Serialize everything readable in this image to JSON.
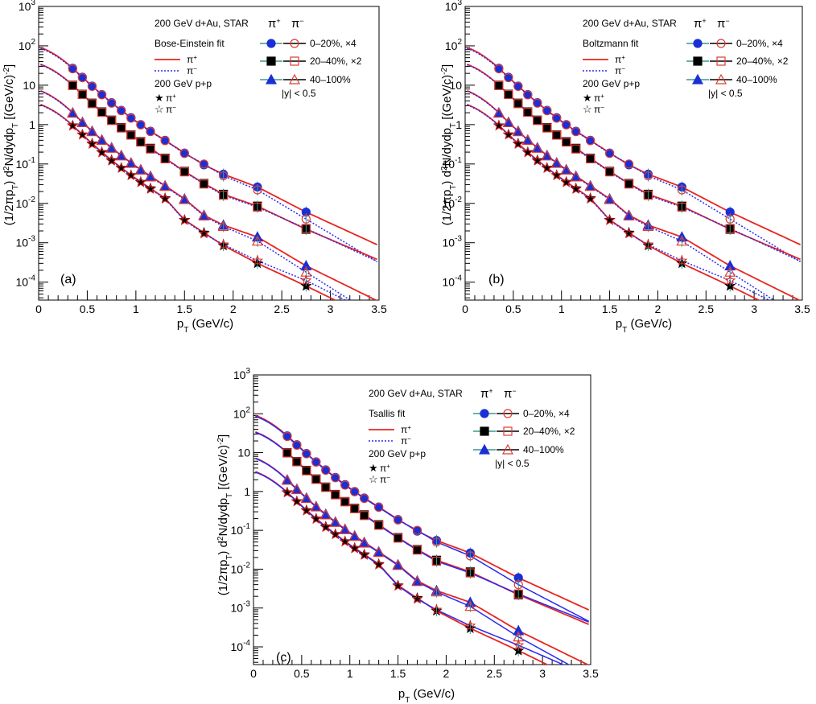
{
  "colors": {
    "fit_pi_plus": "#e8241f",
    "fit_pi_minus": "#2a2af2",
    "marker_plus": "#1a2fd6",
    "marker_minus": "#e03a2f",
    "marker_line": "#3a9a8a",
    "star_plus": "#000000",
    "star_minus": "#e02020"
  },
  "shared": {
    "xlabel_main": "p",
    "xlabel_sub": "T",
    "xlabel_unit": " (GeV/c)",
    "ylabel_a": "(1/2πp",
    "ylabel_sub1": "T",
    "ylabel_b": ") d",
    "ylabel_sup": "2",
    "ylabel_c": "N/dydp",
    "ylabel_sub2": "T",
    "ylabel_d": " [(GeV/c)",
    "ylabel_sup2": "-2",
    "ylabel_e": "]",
    "x_ticks": [
      "0",
      "0.5",
      "1",
      "1.5",
      "2",
      "2.5",
      "3",
      "3.5"
    ],
    "y_ticks": [
      {
        "base": "10",
        "exp": "-4"
      },
      {
        "base": "10",
        "exp": "-3"
      },
      {
        "base": "10",
        "exp": "-2"
      },
      {
        "base": "10",
        "exp": "-1"
      },
      {
        "base": "1",
        "exp": ""
      },
      {
        "base": "10",
        "exp": ""
      },
      {
        "base": "10",
        "exp": "2"
      },
      {
        "base": "10",
        "exp": "3"
      }
    ],
    "header_system": "200 GeV d+Au, STAR",
    "header_pip": "π",
    "header_pip_sup": "+",
    "header_pim": "π",
    "header_pim_sup": "−",
    "legend_pi": "π",
    "legend_plus": "+",
    "legend_minus": "−",
    "pp_label": "200 GeV p+p",
    "cent_labels": [
      "0–20%, ×4",
      "20–40%, ×2",
      "40–100%"
    ],
    "rapidity": "|y| < 0.5"
  },
  "panels": [
    {
      "tag": "(a)",
      "fit_name": "Bose-Einstein fit"
    },
    {
      "tag": "(b)",
      "fit_name": "Boltzmann fit"
    },
    {
      "tag": "(c)",
      "fit_name": "Tsallis fit"
    }
  ],
  "chart_data": [
    {
      "type": "scatter",
      "panel": "(a)",
      "title": "",
      "xlabel": "p_T (GeV/c)",
      "ylabel": "(1/2πp_T) d²N/dydp_T [(GeV/c)^-2]",
      "xlim": [
        0,
        3.5
      ],
      "ylim": [
        3.5e-05,
        1000
      ],
      "yscale": "log",
      "fit": "Bose-Einstein",
      "x": [
        0.35,
        0.45,
        0.55,
        0.65,
        0.75,
        0.85,
        0.95,
        1.05,
        1.15,
        1.3,
        1.5,
        1.7,
        1.9,
        2.25,
        2.75
      ],
      "series": [
        {
          "name": "π⁺ 0–20%, ×4",
          "values": [
            27,
            16,
            9.5,
            5.8,
            3.6,
            2.3,
            1.5,
            1.0,
            0.68,
            0.4,
            0.19,
            0.095,
            0.055,
            0.026,
            0.006
          ]
        },
        {
          "name": "π⁻ 0–20%, ×4",
          "values": [
            26,
            15.5,
            9.3,
            5.7,
            3.5,
            2.25,
            1.45,
            0.98,
            0.66,
            0.39,
            0.185,
            0.1,
            0.05,
            0.022,
            0.004
          ]
        },
        {
          "name": "π⁺ 20–40%, ×2",
          "values": [
            10,
            5.9,
            3.5,
            2.1,
            1.3,
            0.84,
            0.55,
            0.37,
            0.25,
            0.14,
            0.065,
            0.032,
            0.017,
            0.0085,
            0.0022
          ]
        },
        {
          "name": "π⁻ 20–40%, ×2",
          "values": [
            9.8,
            5.8,
            3.4,
            2.05,
            1.27,
            0.82,
            0.54,
            0.36,
            0.24,
            0.135,
            0.063,
            0.031,
            0.016,
            0.008,
            0.0023
          ]
        },
        {
          "name": "π⁺ 40–100%",
          "values": [
            2.0,
            1.15,
            0.68,
            0.41,
            0.26,
            0.165,
            0.107,
            0.072,
            0.049,
            0.028,
            0.013,
            0.005,
            0.0028,
            0.0014,
            0.00026
          ]
        },
        {
          "name": "π⁻ 40–100%",
          "values": [
            1.95,
            1.12,
            0.66,
            0.4,
            0.25,
            0.16,
            0.104,
            0.07,
            0.047,
            0.027,
            0.0125,
            0.0048,
            0.0026,
            0.0011,
            0.00018
          ]
        },
        {
          "name": "p+p π⁺",
          "values": [
            0.95,
            0.56,
            0.33,
            0.2,
            0.125,
            0.08,
            0.052,
            0.035,
            0.024,
            0.0135,
            0.0038,
            0.0018,
            0.00085,
            0.0003,
            8e-05
          ]
        },
        {
          "name": "p+p π⁻",
          "values": [
            0.93,
            0.55,
            0.32,
            0.195,
            0.12,
            0.078,
            0.051,
            0.034,
            0.023,
            0.013,
            0.0037,
            0.0017,
            0.0009,
            0.00035,
            0.00011
          ]
        }
      ]
    },
    {
      "type": "scatter",
      "panel": "(b)",
      "title": "",
      "xlabel": "p_T (GeV/c)",
      "ylabel": "(1/2πp_T) d²N/dydp_T [(GeV/c)^-2]",
      "xlim": [
        0,
        3.5
      ],
      "ylim": [
        3.5e-05,
        1000
      ],
      "yscale": "log",
      "fit": "Boltzmann",
      "x": [
        0.35,
        0.45,
        0.55,
        0.65,
        0.75,
        0.85,
        0.95,
        1.05,
        1.15,
        1.3,
        1.5,
        1.7,
        1.9,
        2.25,
        2.75
      ],
      "series": [
        {
          "name": "π⁺ 0–20%, ×4",
          "values": [
            27,
            16,
            9.5,
            5.8,
            3.6,
            2.3,
            1.5,
            1.0,
            0.68,
            0.4,
            0.19,
            0.095,
            0.055,
            0.026,
            0.006
          ]
        },
        {
          "name": "π⁻ 0–20%, ×4",
          "values": [
            26,
            15.5,
            9.3,
            5.7,
            3.5,
            2.25,
            1.45,
            0.98,
            0.66,
            0.39,
            0.185,
            0.1,
            0.05,
            0.022,
            0.004
          ]
        },
        {
          "name": "π⁺ 20–40%, ×2",
          "values": [
            10,
            5.9,
            3.5,
            2.1,
            1.3,
            0.84,
            0.55,
            0.37,
            0.25,
            0.14,
            0.065,
            0.032,
            0.017,
            0.0085,
            0.0022
          ]
        },
        {
          "name": "π⁻ 20–40%, ×2",
          "values": [
            9.8,
            5.8,
            3.4,
            2.05,
            1.27,
            0.82,
            0.54,
            0.36,
            0.24,
            0.135,
            0.063,
            0.031,
            0.016,
            0.008,
            0.0023
          ]
        },
        {
          "name": "π⁺ 40–100%",
          "values": [
            2.0,
            1.15,
            0.68,
            0.41,
            0.26,
            0.165,
            0.107,
            0.072,
            0.049,
            0.028,
            0.013,
            0.005,
            0.0028,
            0.0014,
            0.00026
          ]
        },
        {
          "name": "π⁻ 40–100%",
          "values": [
            1.95,
            1.12,
            0.66,
            0.4,
            0.25,
            0.16,
            0.104,
            0.07,
            0.047,
            0.027,
            0.0125,
            0.0048,
            0.0026,
            0.0011,
            0.00018
          ]
        },
        {
          "name": "p+p π⁺",
          "values": [
            0.95,
            0.56,
            0.33,
            0.2,
            0.125,
            0.08,
            0.052,
            0.035,
            0.024,
            0.0135,
            0.0038,
            0.0018,
            0.00085,
            0.0003,
            8e-05
          ]
        },
        {
          "name": "p+p π⁻",
          "values": [
            0.93,
            0.55,
            0.32,
            0.195,
            0.12,
            0.078,
            0.051,
            0.034,
            0.023,
            0.013,
            0.0037,
            0.0017,
            0.0009,
            0.00035,
            0.00011
          ]
        }
      ]
    },
    {
      "type": "scatter",
      "panel": "(c)",
      "title": "",
      "xlabel": "p_T (GeV/c)",
      "ylabel": "(1/2πp_T) d²N/dydp_T [(GeV/c)^-2]",
      "xlim": [
        0,
        3.5
      ],
      "ylim": [
        3.5e-05,
        1000
      ],
      "yscale": "log",
      "fit": "Tsallis",
      "x": [
        0.35,
        0.45,
        0.55,
        0.65,
        0.75,
        0.85,
        0.95,
        1.05,
        1.15,
        1.3,
        1.5,
        1.7,
        1.9,
        2.25,
        2.75
      ],
      "series": [
        {
          "name": "π⁺ 0–20%, ×4",
          "values": [
            27,
            16,
            9.5,
            5.8,
            3.6,
            2.3,
            1.5,
            1.0,
            0.68,
            0.4,
            0.19,
            0.095,
            0.055,
            0.026,
            0.006
          ]
        },
        {
          "name": "π⁻ 0–20%, ×4",
          "values": [
            26,
            15.5,
            9.3,
            5.7,
            3.5,
            2.25,
            1.45,
            0.98,
            0.66,
            0.39,
            0.185,
            0.1,
            0.05,
            0.022,
            0.004
          ]
        },
        {
          "name": "π⁺ 20–40%, ×2",
          "values": [
            10,
            5.9,
            3.5,
            2.1,
            1.3,
            0.84,
            0.55,
            0.37,
            0.25,
            0.14,
            0.065,
            0.032,
            0.017,
            0.0085,
            0.0022
          ]
        },
        {
          "name": "π⁻ 20–40%, ×2",
          "values": [
            9.8,
            5.8,
            3.4,
            2.05,
            1.27,
            0.82,
            0.54,
            0.36,
            0.24,
            0.135,
            0.063,
            0.031,
            0.016,
            0.008,
            0.0023
          ]
        },
        {
          "name": "π⁺ 40–100%",
          "values": [
            2.0,
            1.15,
            0.68,
            0.41,
            0.26,
            0.165,
            0.107,
            0.072,
            0.049,
            0.028,
            0.013,
            0.005,
            0.0028,
            0.0014,
            0.00026
          ]
        },
        {
          "name": "π⁻ 40–100%",
          "values": [
            1.95,
            1.12,
            0.66,
            0.4,
            0.25,
            0.16,
            0.104,
            0.07,
            0.047,
            0.027,
            0.0125,
            0.0048,
            0.0026,
            0.0011,
            0.00018
          ]
        },
        {
          "name": "p+p π⁺",
          "values": [
            0.95,
            0.56,
            0.33,
            0.2,
            0.125,
            0.08,
            0.052,
            0.035,
            0.024,
            0.0135,
            0.0038,
            0.0018,
            0.00085,
            0.0003,
            8e-05
          ]
        },
        {
          "name": "p+p π⁻",
          "values": [
            0.93,
            0.55,
            0.32,
            0.195,
            0.12,
            0.078,
            0.051,
            0.034,
            0.023,
            0.013,
            0.0037,
            0.0017,
            0.0009,
            0.00035,
            0.00011
          ]
        }
      ]
    }
  ]
}
